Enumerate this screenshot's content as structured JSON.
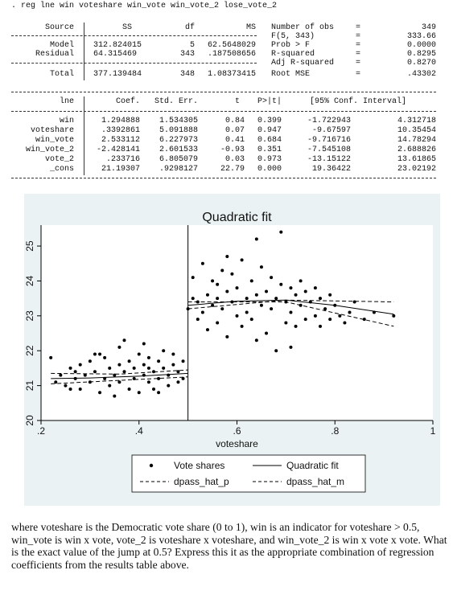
{
  "command": ". reg lne win voteshare win_vote win_vote_2 lose_vote_2",
  "anova": {
    "headers": {
      "source": "Source",
      "ss": "SS",
      "df": "df",
      "ms": "MS"
    },
    "rows": [
      {
        "source": "Model",
        "ss": "312.824015",
        "df": "5",
        "ms": "62.5648029"
      },
      {
        "source": "Residual",
        "ss": "64.315469",
        "df": "343",
        "ms": ".187508656"
      },
      {
        "source": "Total",
        "ss": "377.139484",
        "df": "348",
        "ms": "1.08373415"
      }
    ]
  },
  "fit_stats": [
    {
      "label": "Number of obs",
      "eq": "=",
      "value": "349"
    },
    {
      "label": "F(5, 343)",
      "eq": "=",
      "value": "333.66"
    },
    {
      "label": "Prob > F",
      "eq": "=",
      "value": "0.0000"
    },
    {
      "label": "R-squared",
      "eq": "=",
      "value": "0.8295"
    },
    {
      "label": "Adj R-squared",
      "eq": "=",
      "value": "0.8270"
    },
    {
      "label": "Root MSE",
      "eq": "=",
      "value": ".43302"
    }
  ],
  "coef_table": {
    "headers": {
      "var": "lne",
      "coef": "Coef.",
      "se": "Std. Err.",
      "t": "t",
      "p": "P>|t|",
      "ci": "[95% Conf. Interval]"
    },
    "rows": [
      {
        "var": "win",
        "coef": "1.294888",
        "se": "1.534305",
        "t": "0.84",
        "p": "0.399",
        "lo": "-1.722943",
        "hi": "4.312718"
      },
      {
        "var": "voteshare",
        "coef": ".3392861",
        "se": "5.091888",
        "t": "0.07",
        "p": "0.947",
        "lo": "-9.67597",
        "hi": "10.35454"
      },
      {
        "var": "win_vote",
        "coef": "2.533112",
        "se": "6.227973",
        "t": "0.41",
        "p": "0.684",
        "lo": "-9.716716",
        "hi": "14.78294"
      },
      {
        "var": "win_vote_2",
        "coef": "-2.428141",
        "se": "2.601533",
        "t": "-0.93",
        "p": "0.351",
        "lo": "-7.545108",
        "hi": "2.688826"
      },
      {
        "var": "vote_2",
        "coef": ".233716",
        "se": "6.805079",
        "t": "0.03",
        "p": "0.973",
        "lo": "-13.15122",
        "hi": "13.61865"
      },
      {
        "var": "_cons",
        "coef": "21.19307",
        "se": ".9298127",
        "t": "22.79",
        "p": "0.000",
        "lo": "19.36422",
        "hi": "23.02192"
      }
    ]
  },
  "chart_data": {
    "type": "scatter",
    "title": "Quadratic fit",
    "xlabel": "voteshare",
    "ylabel": "",
    "xlim": [
      0.2,
      1.0
    ],
    "ylim": [
      20,
      25.6
    ],
    "xticks": [
      ".2",
      ".4",
      ".6",
      ".8",
      "1"
    ],
    "xtick_values": [
      0.2,
      0.4,
      0.6,
      0.8,
      1.0
    ],
    "yticks": [
      "20",
      "21",
      "22",
      "23",
      "24",
      "25"
    ],
    "ytick_values": [
      20,
      21,
      22,
      23,
      24,
      25
    ],
    "threshold": 0.5,
    "legend": {
      "placement": "bottom",
      "entries": [
        {
          "label": "Vote shares",
          "style": "dot"
        },
        {
          "label": "Quadratic fit",
          "style": "solid"
        },
        {
          "label": "dpass_hat_p",
          "style": "dashed"
        },
        {
          "label": "dpass_hat_m",
          "style": "dashed"
        }
      ]
    },
    "colors": {
      "background": "#eaf2f3",
      "plot_area": "#ffffff",
      "marks": "#000000"
    },
    "series": [
      {
        "name": "Vote shares",
        "kind": "points",
        "points": [
          [
            0.22,
            21.8
          ],
          [
            0.23,
            21.1
          ],
          [
            0.24,
            21.3
          ],
          [
            0.25,
            21.0
          ],
          [
            0.26,
            21.5
          ],
          [
            0.27,
            21.2
          ],
          [
            0.28,
            21.6
          ],
          [
            0.28,
            20.9
          ],
          [
            0.29,
            21.3
          ],
          [
            0.3,
            21.7
          ],
          [
            0.3,
            21.1
          ],
          [
            0.31,
            21.4
          ],
          [
            0.32,
            20.8
          ],
          [
            0.32,
            21.9
          ],
          [
            0.33,
            21.2
          ],
          [
            0.34,
            21.5
          ],
          [
            0.34,
            21.0
          ],
          [
            0.35,
            21.3
          ],
          [
            0.35,
            20.7
          ],
          [
            0.36,
            21.6
          ],
          [
            0.36,
            21.1
          ],
          [
            0.37,
            22.3
          ],
          [
            0.37,
            21.4
          ],
          [
            0.38,
            20.9
          ],
          [
            0.38,
            21.7
          ],
          [
            0.39,
            21.2
          ],
          [
            0.39,
            21.5
          ],
          [
            0.4,
            20.8
          ],
          [
            0.4,
            21.9
          ],
          [
            0.41,
            21.3
          ],
          [
            0.41,
            21.6
          ],
          [
            0.42,
            21.1
          ],
          [
            0.42,
            21.8
          ],
          [
            0.43,
            21.4
          ],
          [
            0.43,
            20.9
          ],
          [
            0.44,
            21.7
          ],
          [
            0.44,
            21.2
          ],
          [
            0.45,
            21.5
          ],
          [
            0.45,
            22.0
          ],
          [
            0.46,
            21.3
          ],
          [
            0.46,
            21.0
          ],
          [
            0.47,
            21.6
          ],
          [
            0.47,
            21.9
          ],
          [
            0.48,
            21.4
          ],
          [
            0.48,
            21.1
          ],
          [
            0.49,
            21.7
          ],
          [
            0.49,
            21.2
          ],
          [
            0.33,
            21.8
          ],
          [
            0.27,
            21.4
          ],
          [
            0.41,
            22.2
          ],
          [
            0.44,
            20.8
          ],
          [
            0.26,
            20.9
          ],
          [
            0.31,
            21.9
          ],
          [
            0.36,
            22.1
          ],
          [
            0.42,
            21.5
          ],
          [
            0.5,
            23.2
          ],
          [
            0.51,
            23.5
          ],
          [
            0.51,
            24.1
          ],
          [
            0.52,
            22.9
          ],
          [
            0.52,
            23.4
          ],
          [
            0.53,
            24.5
          ],
          [
            0.53,
            23.1
          ],
          [
            0.54,
            23.6
          ],
          [
            0.54,
            22.6
          ],
          [
            0.55,
            23.3
          ],
          [
            0.55,
            24.0
          ],
          [
            0.56,
            23.5
          ],
          [
            0.56,
            22.8
          ],
          [
            0.57,
            24.3
          ],
          [
            0.57,
            23.2
          ],
          [
            0.58,
            23.7
          ],
          [
            0.58,
            22.4
          ],
          [
            0.59,
            23.4
          ],
          [
            0.59,
            24.2
          ],
          [
            0.6,
            23.0
          ],
          [
            0.6,
            23.8
          ],
          [
            0.61,
            24.6
          ],
          [
            0.61,
            22.7
          ],
          [
            0.62,
            23.5
          ],
          [
            0.62,
            23.1
          ],
          [
            0.63,
            24.0
          ],
          [
            0.63,
            22.9
          ],
          [
            0.64,
            23.6
          ],
          [
            0.64,
            25.2
          ],
          [
            0.65,
            23.3
          ],
          [
            0.65,
            24.4
          ],
          [
            0.66,
            22.5
          ],
          [
            0.66,
            23.7
          ],
          [
            0.67,
            23.2
          ],
          [
            0.67,
            24.1
          ],
          [
            0.68,
            22.0
          ],
          [
            0.68,
            23.5
          ],
          [
            0.69,
            23.9
          ],
          [
            0.69,
            25.4
          ],
          [
            0.7,
            22.8
          ],
          [
            0.7,
            23.4
          ],
          [
            0.71,
            23.8
          ],
          [
            0.71,
            23.1
          ],
          [
            0.72,
            23.6
          ],
          [
            0.72,
            22.7
          ],
          [
            0.73,
            24.0
          ],
          [
            0.73,
            23.3
          ],
          [
            0.74,
            22.9
          ],
          [
            0.74,
            23.7
          ],
          [
            0.75,
            23.4
          ],
          [
            0.76,
            23.0
          ],
          [
            0.76,
            23.8
          ],
          [
            0.77,
            22.7
          ],
          [
            0.77,
            23.5
          ],
          [
            0.78,
            23.2
          ],
          [
            0.79,
            23.6
          ],
          [
            0.79,
            22.9
          ],
          [
            0.8,
            23.3
          ],
          [
            0.81,
            23.0
          ],
          [
            0.82,
            22.8
          ],
          [
            0.83,
            23.1
          ],
          [
            0.84,
            23.4
          ],
          [
            0.86,
            22.9
          ],
          [
            0.88,
            23.1
          ],
          [
            0.92,
            23.0
          ],
          [
            0.56,
            23.9
          ],
          [
            0.64,
            22.3
          ],
          [
            0.71,
            22.1
          ],
          [
            0.58,
            24.7
          ]
        ]
      },
      {
        "name": "Quadratic fit",
        "kind": "line",
        "segments": [
          [
            [
              0.22,
              21.2
            ],
            [
              0.3,
              21.22
            ],
            [
              0.4,
              21.27
            ],
            [
              0.5,
              21.35
            ]
          ],
          [
            [
              0.5,
              23.3
            ],
            [
              0.6,
              23.42
            ],
            [
              0.7,
              23.45
            ],
            [
              0.8,
              23.3
            ],
            [
              0.92,
              23.05
            ]
          ]
        ]
      },
      {
        "name": "dpass_hat_p",
        "kind": "dashed",
        "segments": [
          [
            [
              0.22,
              21.35
            ],
            [
              0.36,
              21.33
            ],
            [
              0.5,
              21.45
            ]
          ],
          [
            [
              0.5,
              23.2
            ],
            [
              0.7,
              23.45
            ],
            [
              0.92,
              23.4
            ]
          ]
        ]
      },
      {
        "name": "dpass_hat_m",
        "kind": "dashed",
        "segments": [
          [
            [
              0.22,
              21.05
            ],
            [
              0.36,
              21.15
            ],
            [
              0.5,
              21.25
            ]
          ],
          [
            [
              0.5,
              23.4
            ],
            [
              0.7,
              23.4
            ],
            [
              0.92,
              22.7
            ]
          ]
        ]
      }
    ]
  },
  "question": "where voteshare is the Democratic vote share (0 to 1), win is an indicator for voteshare > 0.5, win_vote is win x vote, vote_2 is voteshare x voteshare, and win_vote_2 is win x vote x vote. What is the exact value of the jump at 0.5? Express this it as the appropriate combination of regression coefficients from the results table above."
}
